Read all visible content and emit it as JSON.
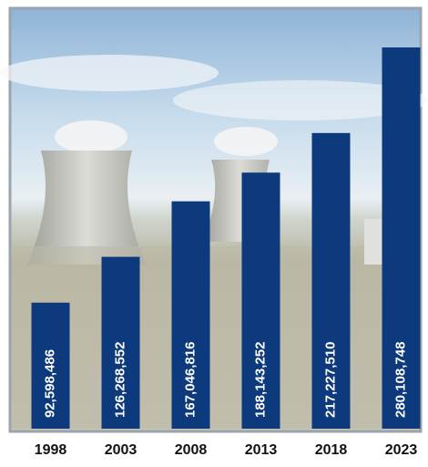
{
  "chart_data": {
    "type": "bar",
    "categories": [
      "1998",
      "2003",
      "2008",
      "2013",
      "2018",
      "2023"
    ],
    "values": [
      92598486,
      126268552,
      167046816,
      188143252,
      217227510,
      280108748
    ],
    "value_labels": [
      "92,598,486",
      "126,268,552",
      "167,046,816",
      "188,143,252",
      "217,227,510",
      "280,108,748"
    ],
    "color": "#0c3a7c"
  }
}
